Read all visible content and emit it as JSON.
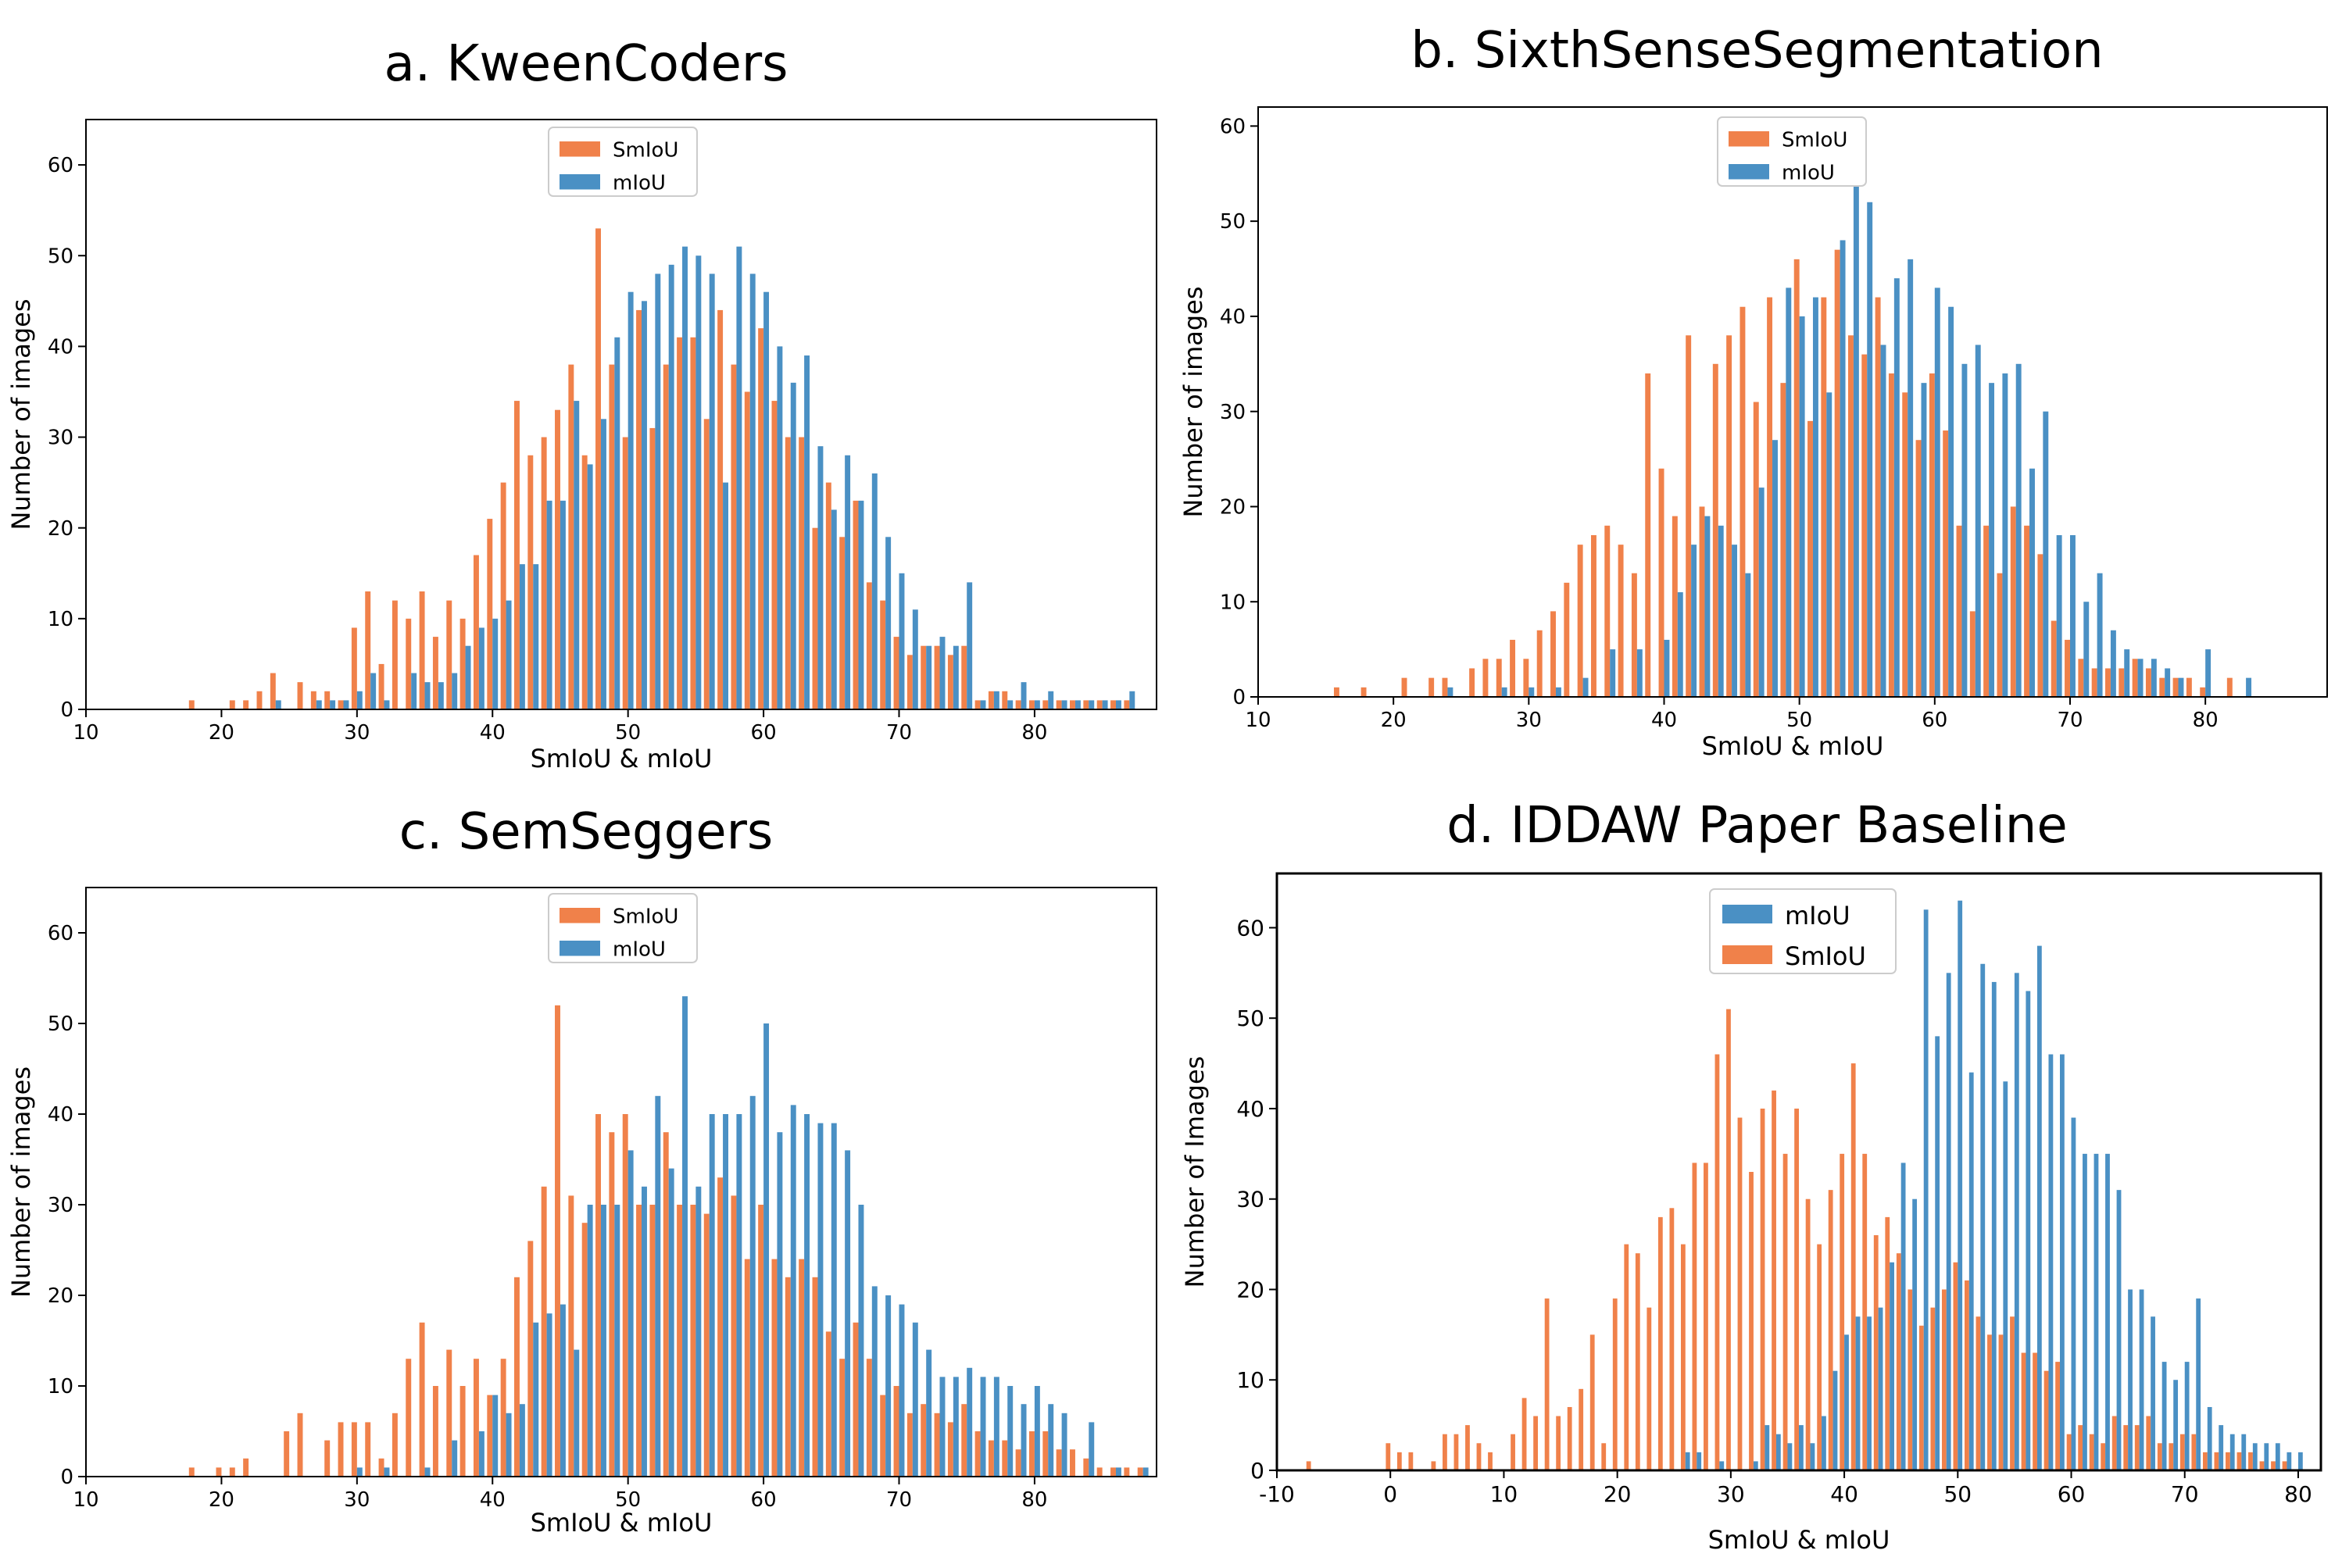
{
  "colors": {
    "smiou": "#f0814a",
    "miou": "#4a90c4",
    "frame": "#000000"
  },
  "chart_data": [
    {
      "panel": "a",
      "type": "bar",
      "title": "a. KweenCoders",
      "xlabel": "SmIoU & mIoU",
      "ylabel": "Number of images",
      "xlim": [
        10,
        89
      ],
      "ylim": [
        0,
        65
      ],
      "xticks": [
        10,
        20,
        30,
        40,
        50,
        60,
        70,
        80
      ],
      "yticks": [
        0,
        10,
        20,
        30,
        40,
        50,
        60
      ],
      "legend": [
        {
          "name": "SmIoU",
          "key": "smiou"
        },
        {
          "name": "mIoU",
          "key": "miou"
        }
      ],
      "series": [
        {
          "name": "SmIoU",
          "key": "smiou",
          "x": [
            18,
            21,
            22,
            23,
            24,
            26,
            27,
            28,
            29,
            30,
            31,
            32,
            33,
            34,
            35,
            36,
            37,
            38,
            39,
            40,
            41,
            42,
            43,
            44,
            45,
            46,
            47,
            48,
            49,
            50,
            51,
            52,
            53,
            54,
            55,
            56,
            57,
            58,
            59,
            60,
            61,
            62,
            63,
            64,
            65,
            66,
            67,
            68,
            69,
            70,
            71,
            72,
            73,
            74,
            75,
            76,
            77,
            78,
            79,
            80,
            81,
            82,
            83,
            84,
            85,
            86,
            87
          ],
          "y": [
            1,
            1,
            1,
            2,
            4,
            3,
            2,
            2,
            1,
            9,
            13,
            5,
            12,
            10,
            13,
            8,
            12,
            10,
            17,
            21,
            25,
            34,
            28,
            30,
            33,
            38,
            28,
            53,
            38,
            30,
            44,
            31,
            38,
            41,
            41,
            32,
            44,
            38,
            35,
            42,
            34,
            30,
            30,
            20,
            25,
            19,
            23,
            14,
            12,
            8,
            6,
            7,
            7,
            6,
            7,
            1,
            2,
            2,
            1,
            1,
            1,
            1,
            1,
            1,
            1,
            1,
            1
          ]
        },
        {
          "name": "mIoU",
          "key": "miou",
          "x": [
            24,
            27,
            28,
            29,
            30,
            31,
            32,
            34,
            35,
            36,
            37,
            38,
            39,
            40,
            41,
            42,
            43,
            44,
            45,
            46,
            47,
            48,
            49,
            50,
            51,
            52,
            53,
            54,
            55,
            56,
            57,
            58,
            59,
            60,
            61,
            62,
            63,
            64,
            65,
            66,
            67,
            68,
            69,
            70,
            71,
            72,
            73,
            74,
            75,
            76,
            77,
            78,
            79,
            80,
            81,
            82,
            83,
            84,
            85,
            86,
            87
          ],
          "y": [
            1,
            1,
            1,
            1,
            2,
            4,
            1,
            4,
            3,
            3,
            4,
            7,
            9,
            10,
            12,
            16,
            16,
            23,
            23,
            34,
            27,
            32,
            41,
            46,
            45,
            48,
            49,
            51,
            50,
            48,
            25,
            51,
            48,
            46,
            40,
            36,
            39,
            29,
            22,
            28,
            23,
            26,
            19,
            15,
            11,
            7,
            8,
            7,
            14,
            1,
            2,
            1,
            3,
            1,
            2,
            1,
            1,
            1,
            1,
            1,
            2
          ]
        }
      ]
    },
    {
      "panel": "b",
      "type": "bar",
      "title": "b. SixthSenseSegmentation",
      "xlabel": "SmIoU & mIoU",
      "ylabel": "Number of images",
      "xlim": [
        10,
        89
      ],
      "ylim": [
        0,
        62
      ],
      "xticks": [
        10,
        20,
        30,
        40,
        50,
        60,
        70,
        80
      ],
      "yticks": [
        0,
        10,
        20,
        30,
        40,
        50,
        60
      ],
      "legend": [
        {
          "name": "SmIoU",
          "key": "smiou"
        },
        {
          "name": "mIoU",
          "key": "miou"
        }
      ],
      "series": [
        {
          "name": "SmIoU",
          "key": "smiou",
          "x": [
            16,
            18,
            21,
            23,
            24,
            26,
            27,
            28,
            29,
            30,
            31,
            32,
            33,
            34,
            35,
            36,
            37,
            38,
            39,
            40,
            41,
            42,
            43,
            44,
            45,
            46,
            47,
            48,
            49,
            50,
            51,
            52,
            53,
            54,
            55,
            56,
            57,
            58,
            59,
            60,
            61,
            62,
            63,
            64,
            65,
            66,
            67,
            68,
            69,
            70,
            71,
            72,
            73,
            74,
            75,
            76,
            77,
            78,
            79,
            80,
            82
          ],
          "y": [
            1,
            1,
            2,
            2,
            2,
            3,
            4,
            4,
            6,
            4,
            7,
            9,
            12,
            16,
            17,
            18,
            16,
            13,
            34,
            24,
            19,
            38,
            20,
            35,
            38,
            41,
            31,
            42,
            33,
            46,
            29,
            42,
            47,
            38,
            36,
            42,
            34,
            32,
            27,
            34,
            28,
            18,
            9,
            18,
            13,
            20,
            18,
            15,
            8,
            6,
            4,
            3,
            3,
            3,
            4,
            3,
            2,
            2,
            2,
            1,
            2
          ]
        },
        {
          "name": "mIoU",
          "key": "miou",
          "x": [
            24,
            28,
            30,
            32,
            34,
            36,
            38,
            40,
            41,
            42,
            43,
            44,
            45,
            46,
            47,
            48,
            49,
            50,
            51,
            52,
            53,
            54,
            55,
            56,
            57,
            58,
            59,
            60,
            61,
            62,
            63,
            64,
            65,
            66,
            67,
            68,
            69,
            70,
            71,
            72,
            73,
            74,
            75,
            76,
            77,
            78,
            80,
            83
          ],
          "y": [
            1,
            1,
            1,
            1,
            2,
            5,
            5,
            6,
            11,
            16,
            19,
            18,
            16,
            13,
            22,
            27,
            43,
            40,
            42,
            32,
            48,
            55,
            52,
            37,
            44,
            46,
            33,
            43,
            41,
            35,
            37,
            33,
            34,
            35,
            24,
            30,
            17,
            17,
            10,
            13,
            7,
            5,
            4,
            4,
            3,
            2,
            5,
            2
          ]
        }
      ]
    },
    {
      "panel": "c",
      "type": "bar",
      "title": "c. SemSeggers",
      "xlabel": "SmIoU & mIoU",
      "ylabel": "Number of images",
      "xlim": [
        10,
        89
      ],
      "ylim": [
        0,
        65
      ],
      "xticks": [
        10,
        20,
        30,
        40,
        50,
        60,
        70,
        80
      ],
      "yticks": [
        0,
        10,
        20,
        30,
        40,
        50,
        60
      ],
      "legend": [
        {
          "name": "SmIoU",
          "key": "smiou"
        },
        {
          "name": "mIoU",
          "key": "miou"
        }
      ],
      "series": [
        {
          "name": "SmIoU",
          "key": "smiou",
          "x": [
            18,
            20,
            21,
            22,
            25,
            26,
            28,
            29,
            30,
            31,
            32,
            33,
            34,
            35,
            36,
            37,
            38,
            39,
            40,
            41,
            42,
            43,
            44,
            45,
            46,
            47,
            48,
            49,
            50,
            51,
            52,
            53,
            54,
            55,
            56,
            57,
            58,
            59,
            60,
            61,
            62,
            63,
            64,
            65,
            66,
            67,
            68,
            69,
            70,
            71,
            72,
            73,
            74,
            75,
            76,
            77,
            78,
            79,
            80,
            81,
            82,
            83,
            84,
            85,
            86,
            87,
            88
          ],
          "y": [
            1,
            1,
            1,
            2,
            5,
            7,
            4,
            6,
            6,
            6,
            2,
            7,
            13,
            17,
            10,
            14,
            10,
            13,
            9,
            13,
            22,
            26,
            32,
            52,
            31,
            28,
            40,
            38,
            40,
            30,
            30,
            38,
            30,
            30,
            29,
            33,
            31,
            24,
            30,
            24,
            22,
            24,
            22,
            16,
            13,
            17,
            13,
            9,
            10,
            7,
            8,
            7,
            6,
            8,
            5,
            4,
            4,
            3,
            5,
            5,
            3,
            3,
            2,
            1,
            1,
            1,
            1
          ]
        },
        {
          "name": "mIoU",
          "key": "miou",
          "x": [
            30,
            32,
            35,
            37,
            39,
            40,
            41,
            42,
            43,
            44,
            45,
            46,
            47,
            48,
            49,
            50,
            51,
            52,
            53,
            54,
            55,
            56,
            57,
            58,
            59,
            60,
            61,
            62,
            63,
            64,
            65,
            66,
            67,
            68,
            69,
            70,
            71,
            72,
            73,
            74,
            75,
            76,
            77,
            78,
            79,
            80,
            81,
            82,
            84,
            86,
            88
          ],
          "y": [
            1,
            1,
            1,
            4,
            5,
            9,
            7,
            8,
            17,
            18,
            19,
            14,
            30,
            30,
            30,
            36,
            32,
            42,
            34,
            53,
            32,
            40,
            40,
            40,
            42,
            50,
            38,
            41,
            40,
            39,
            39,
            36,
            30,
            21,
            20,
            19,
            17,
            14,
            11,
            11,
            12,
            11,
            11,
            10,
            8,
            10,
            8,
            7,
            6,
            1,
            1
          ]
        }
      ]
    },
    {
      "panel": "d",
      "type": "bar",
      "title": "d. IDDAW Paper Baseline",
      "xlabel": "SmIoU & mIoU",
      "ylabel": "Number of Images",
      "xlim": [
        -10,
        82
      ],
      "ylim": [
        0,
        66
      ],
      "xticks": [
        -10,
        0,
        10,
        20,
        30,
        40,
        50,
        60,
        70,
        80
      ],
      "yticks": [
        0,
        10,
        20,
        30,
        40,
        50,
        60
      ],
      "legend": [
        {
          "name": "mIoU",
          "key": "miou"
        },
        {
          "name": "SmIoU",
          "key": "smiou"
        }
      ],
      "series": [
        {
          "name": "SmIoU",
          "key": "smiou",
          "x": [
            -7,
            0,
            1,
            2,
            4,
            5,
            6,
            7,
            8,
            9,
            11,
            12,
            13,
            14,
            15,
            16,
            17,
            18,
            19,
            20,
            21,
            22,
            23,
            24,
            25,
            26,
            27,
            28,
            29,
            30,
            31,
            32,
            33,
            34,
            35,
            36,
            37,
            38,
            39,
            40,
            41,
            42,
            43,
            44,
            45,
            46,
            47,
            48,
            49,
            50,
            51,
            52,
            53,
            54,
            55,
            56,
            57,
            58,
            59,
            60,
            61,
            62,
            63,
            64,
            65,
            66,
            67,
            68,
            69,
            70,
            71,
            72,
            73,
            74,
            75,
            76,
            77,
            78,
            79
          ],
          "y": [
            1,
            3,
            2,
            2,
            1,
            4,
            4,
            5,
            3,
            2,
            4,
            8,
            6,
            19,
            6,
            7,
            9,
            15,
            3,
            19,
            25,
            24,
            18,
            28,
            29,
            25,
            34,
            34,
            46,
            51,
            39,
            33,
            40,
            42,
            35,
            40,
            30,
            25,
            31,
            35,
            45,
            35,
            26,
            28,
            24,
            20,
            16,
            18,
            20,
            23,
            21,
            17,
            15,
            15,
            17,
            13,
            13,
            11,
            12,
            4,
            5,
            4,
            3,
            6,
            5,
            5,
            6,
            3,
            3,
            4,
            4,
            2,
            2,
            2,
            2,
            2,
            1,
            1,
            1
          ]
        },
        {
          "name": "mIoU",
          "key": "miou",
          "x": [
            26,
            27,
            29,
            32,
            33,
            34,
            35,
            36,
            37,
            38,
            39,
            40,
            41,
            42,
            43,
            44,
            45,
            46,
            47,
            48,
            49,
            50,
            51,
            52,
            53,
            54,
            55,
            56,
            57,
            58,
            59,
            60,
            61,
            62,
            63,
            64,
            65,
            66,
            67,
            68,
            69,
            70,
            71,
            72,
            73,
            74,
            75,
            76,
            77,
            78,
            79,
            80
          ],
          "y": [
            2,
            2,
            1,
            1,
            5,
            4,
            3,
            5,
            3,
            6,
            11,
            15,
            17,
            17,
            18,
            23,
            34,
            30,
            62,
            48,
            55,
            63,
            44,
            56,
            54,
            43,
            55,
            53,
            58,
            46,
            46,
            39,
            35,
            35,
            35,
            31,
            20,
            20,
            17,
            12,
            10,
            12,
            19,
            7,
            5,
            4,
            4,
            3,
            3,
            3,
            2,
            2
          ]
        }
      ]
    }
  ]
}
